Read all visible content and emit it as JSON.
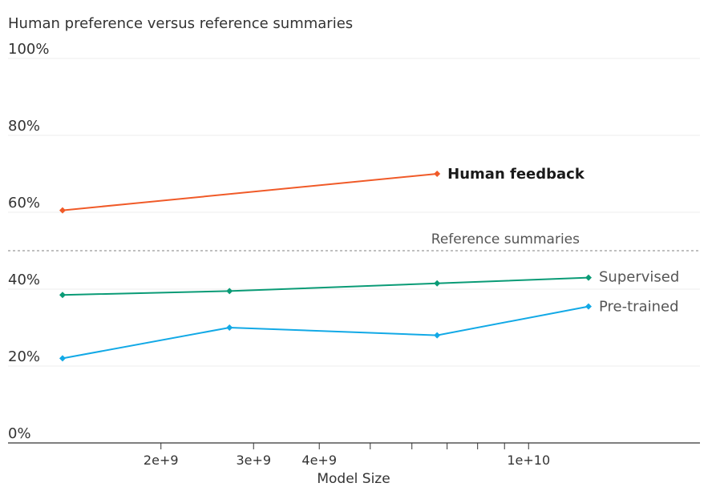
{
  "chart_data": {
    "type": "line",
    "title": "Human preference versus reference summaries",
    "xlabel": "Model Size",
    "ylabel": "",
    "x_scale": "log",
    "ylim": [
      0,
      100
    ],
    "y_ticks": [
      "0%",
      "20%",
      "40%",
      "60%",
      "80%",
      "100%"
    ],
    "y_tick_values": [
      0,
      20,
      40,
      60,
      80,
      100
    ],
    "x_tick_labels": [
      {
        "value": 2000000000,
        "label": "2e+9"
      },
      {
        "value": 3000000000,
        "label": "3e+9"
      },
      {
        "value": 4000000000,
        "label": "4e+9"
      },
      {
        "value": 10000000000,
        "label": "1e+10"
      }
    ],
    "x_minor_ticks": [
      5000000000,
      6000000000,
      7000000000,
      8000000000,
      9000000000
    ],
    "reference_line": {
      "value": 50,
      "label": "Reference summaries"
    },
    "series": [
      {
        "name": "Human feedback",
        "color": "#f05a28",
        "bold": true,
        "points": [
          [
            1300000000,
            60.5
          ],
          [
            6700000000,
            70
          ]
        ]
      },
      {
        "name": "Supervised",
        "color": "#0a9b76",
        "points": [
          [
            1300000000,
            38.5
          ],
          [
            2700000000,
            39.5
          ],
          [
            6700000000,
            41.5
          ],
          [
            13000000000,
            43
          ]
        ]
      },
      {
        "name": "Pre-trained",
        "color": "#12a9e6",
        "points": [
          [
            1300000000,
            22
          ],
          [
            2700000000,
            30
          ],
          [
            6700000000,
            28
          ],
          [
            13000000000,
            35.5
          ]
        ]
      }
    ]
  }
}
